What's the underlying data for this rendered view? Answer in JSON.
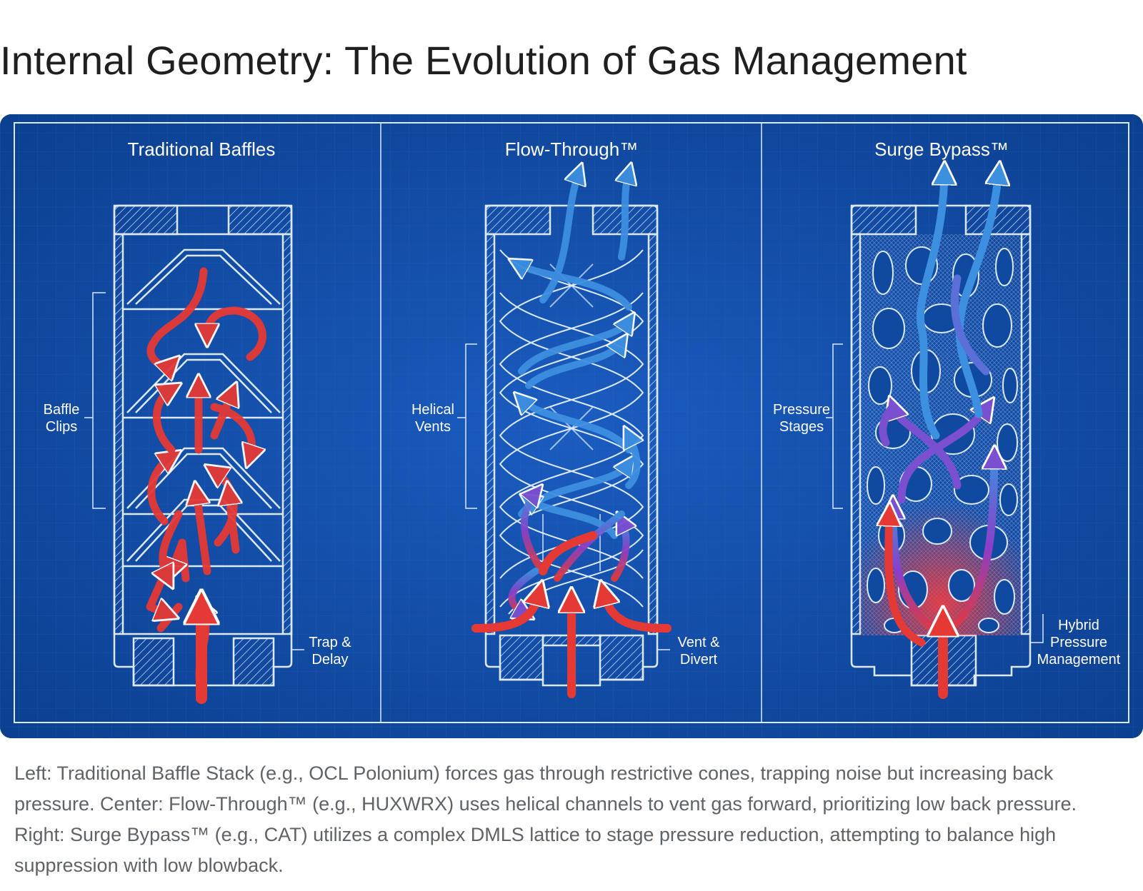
{
  "title": "Internal Geometry: The Evolution of Gas Management",
  "panels": [
    {
      "title": "Traditional Baffles",
      "side_label": [
        "Baffle",
        "Clips"
      ],
      "bottom_label": [
        "Trap &",
        "Delay"
      ]
    },
    {
      "title": "Flow-Through™",
      "side_label": [
        "Helical",
        "Vents"
      ],
      "bottom_label": [
        "Vent &",
        "Divert"
      ]
    },
    {
      "title": "Surge Bypass™",
      "side_label": [
        "Pressure",
        "Stages"
      ],
      "bottom_label": [
        "Hybrid",
        "Pressure",
        "Management"
      ]
    }
  ],
  "caption": "Left: Traditional Baffle Stack (e.g., OCL Polonium) forces gas through restrictive cones, trapping noise but increasing back pressure. Center: Flow-Through™ (e.g., HUXWRX) uses helical channels to vent gas forward, prioritizing low back pressure. Right: Surge Bypass™ (e.g., CAT) utilizes a complex DMLS lattice to stage pressure reduction, attempting to balance high suppression with low blowback.",
  "colors": {
    "blueprint_bg": "#0f4aa0",
    "line": "#dbe9ff",
    "gas_hot": "#e53935",
    "gas_cool": "#3d8fe0"
  },
  "icons": [
    "arrow-up-icon"
  ]
}
